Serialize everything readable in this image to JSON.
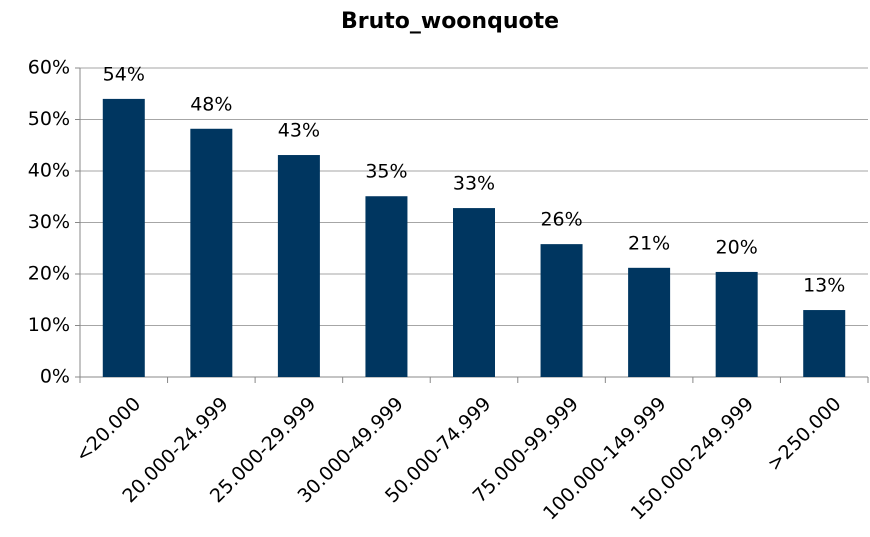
{
  "chart_data": {
    "type": "bar",
    "title": "Bruto_woonquote",
    "categories": [
      "<20.000",
      "20.000-24.999",
      "25.000-29.999",
      "30.000-49.999",
      "50.000-74.999",
      "75.000-99.999",
      "100.000-149.999",
      "150.000-249.999",
      ">250.000"
    ],
    "values": [
      54,
      48.2,
      43.1,
      35.1,
      32.8,
      25.8,
      21.2,
      20.4,
      13
    ],
    "value_labels": [
      "54%",
      "48%",
      "43%",
      "35%",
      "33%",
      "26%",
      "21%",
      "20%",
      "13%"
    ],
    "color": "#003660",
    "ylim": [
      0,
      60
    ],
    "yticks": [
      {
        "value": 0,
        "label": "0%"
      },
      {
        "value": 10,
        "label": "10%"
      },
      {
        "value": 20,
        "label": "20%"
      },
      {
        "value": 30,
        "label": "30%"
      },
      {
        "value": 40,
        "label": "40%"
      },
      {
        "value": 50,
        "label": "50%"
      },
      {
        "value": 60,
        "label": "60%"
      }
    ],
    "grid": true
  }
}
